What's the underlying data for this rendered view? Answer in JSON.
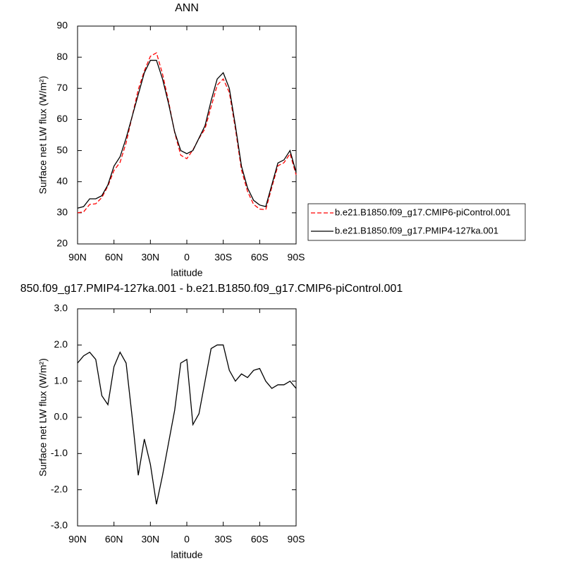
{
  "chart_data": [
    {
      "type": "line",
      "title": "ANN",
      "xlabel": "latitude",
      "ylabel": "Surface net LW flux (W/m²)",
      "x": [
        90,
        85,
        80,
        75,
        70,
        65,
        60,
        55,
        50,
        45,
        40,
        35,
        30,
        25,
        20,
        15,
        10,
        5,
        0,
        -5,
        -10,
        -15,
        -20,
        -25,
        -30,
        -35,
        -40,
        -45,
        -50,
        -55,
        -60,
        -65,
        -70,
        -75,
        -80,
        -85,
        -90
      ],
      "series": [
        {
          "name": "b.e21.B1850.f09_g17.CMIP6-piControl.001",
          "color": "#ff0000",
          "dash": true,
          "values": [
            30,
            30.3,
            32.7,
            32.9,
            34.9,
            38.6,
            43.6,
            46.2,
            52.5,
            61,
            69.6,
            75.6,
            80.3,
            81.4,
            74.6,
            65.7,
            55.8,
            48.5,
            47.4,
            50.2,
            53.9,
            57,
            64.1,
            71,
            73,
            68.7,
            57,
            43.8,
            36.9,
            32.7,
            31.2,
            31,
            38.2,
            45.1,
            46.1,
            49,
            42.2
          ]
        },
        {
          "name": "b.e21.B1850.f09_g17.PMIP4-127ka.001",
          "color": "#000000",
          "dash": false,
          "values": [
            31.5,
            32,
            34.5,
            34.5,
            35.5,
            39,
            45,
            48,
            54,
            61,
            68,
            75,
            79,
            79,
            73,
            65,
            56,
            50,
            49,
            50,
            54,
            58,
            66,
            73,
            75,
            70,
            58,
            45,
            38,
            34,
            32.5,
            32,
            39,
            46,
            47,
            50,
            43
          ]
        }
      ],
      "xlim": [
        90,
        -90
      ],
      "xticks": [
        {
          "value": 90,
          "label": "90N"
        },
        {
          "value": 60,
          "label": "60N"
        },
        {
          "value": 30,
          "label": "30N"
        },
        0,
        {
          "value": -30,
          "label": "30S"
        },
        {
          "value": -60,
          "label": "60S"
        },
        {
          "value": -90,
          "label": "90S"
        }
      ],
      "ylim": [
        20,
        90
      ],
      "yticks": [
        20,
        30,
        40,
        50,
        60,
        70,
        80,
        90
      ]
    },
    {
      "type": "line",
      "title": "850.f09_g17.PMIP4-127ka.001 - b.e21.B1850.f09_g17.CMIP6-piControl.001",
      "xlabel": "latitude",
      "ylabel": "Surface net LW flux (W/m²)",
      "x": [
        90,
        85,
        80,
        75,
        70,
        65,
        60,
        55,
        50,
        45,
        40,
        35,
        30,
        25,
        20,
        15,
        10,
        5,
        0,
        -5,
        -10,
        -15,
        -20,
        -25,
        -30,
        -35,
        -40,
        -45,
        -50,
        -55,
        -60,
        -65,
        -70,
        -75,
        -80,
        -85,
        -90
      ],
      "values": [
        1.5,
        1.7,
        1.8,
        1.6,
        0.6,
        0.35,
        1.4,
        1.8,
        1.5,
        0,
        -1.6,
        -0.6,
        -1.3,
        -2.4,
        -1.6,
        -0.7,
        0.2,
        1.5,
        1.6,
        -0.2,
        0.1,
        1,
        1.9,
        2,
        2,
        1.3,
        1,
        1.2,
        1.1,
        1.3,
        1.35,
        1,
        0.8,
        0.9,
        0.9,
        1,
        0.8
      ],
      "color": "#000000",
      "xlim": [
        90,
        -90
      ],
      "xticks": [
        {
          "value": 90,
          "label": "90N"
        },
        {
          "value": 60,
          "label": "60N"
        },
        {
          "value": 30,
          "label": "30N"
        },
        0,
        {
          "value": -30,
          "label": "30S"
        },
        {
          "value": -60,
          "label": "60S"
        },
        {
          "value": -90,
          "label": "90S"
        }
      ],
      "ylim": [
        -3,
        3
      ],
      "yticks": [
        {
          "value": -3,
          "label": "-3.0"
        },
        {
          "value": -2,
          "label": "-2.0"
        },
        {
          "value": -1,
          "label": "-1.0"
        },
        {
          "value": 0,
          "label": "0.0"
        },
        {
          "value": 1,
          "label": "1.0"
        },
        {
          "value": 2,
          "label": "2.0"
        },
        {
          "value": 3,
          "label": "3.0"
        }
      ]
    }
  ]
}
